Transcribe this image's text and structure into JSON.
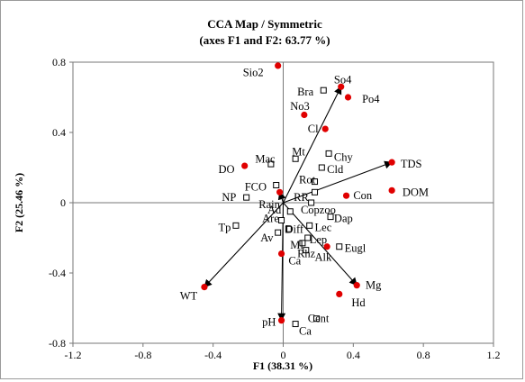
{
  "chart_data": {
    "type": "scatter",
    "title": "CCA Map / Symmetric",
    "subtitle": "(axes F1 and F2: 63.77 %)",
    "xlabel": "F1 (38.31 %)",
    "ylabel": "F2 (25.46 %)",
    "xlim": [
      -1.2,
      1.2
    ],
    "ylim": [
      -0.8,
      0.8
    ],
    "xticks": [
      "-1.2",
      "-0.8",
      "-0.4",
      "0",
      "0.4",
      "0.8",
      "1.2"
    ],
    "yticks": [
      "-0.8",
      "-0.4",
      "0",
      "0.4",
      "0.8"
    ],
    "grid": false,
    "colors": {
      "variables": "#e00000",
      "species": "#000000",
      "vectors": "#000000"
    },
    "variables": [
      {
        "name": "Sio2",
        "x": -0.03,
        "y": 0.78,
        "label_x": -0.23,
        "label_y": 0.74
      },
      {
        "name": "So4",
        "x": 0.33,
        "y": 0.66,
        "label_x": 0.29,
        "label_y": 0.7
      },
      {
        "name": "Po4",
        "x": 0.37,
        "y": 0.6,
        "label_x": 0.45,
        "label_y": 0.59
      },
      {
        "name": "No3",
        "x": 0.12,
        "y": 0.5,
        "label_x": 0.04,
        "label_y": 0.55
      },
      {
        "name": "Cl",
        "x": 0.24,
        "y": 0.42,
        "label_x": 0.14,
        "label_y": 0.42
      },
      {
        "name": "TDS",
        "x": 0.62,
        "y": 0.23,
        "label_x": 0.67,
        "label_y": 0.22
      },
      {
        "name": "DOM",
        "x": 0.62,
        "y": 0.07,
        "label_x": 0.68,
        "label_y": 0.06
      },
      {
        "name": "Con",
        "x": 0.36,
        "y": 0.04,
        "label_x": 0.4,
        "label_y": 0.04
      },
      {
        "name": "DO",
        "x": -0.22,
        "y": 0.21,
        "label_x": -0.37,
        "label_y": 0.19
      },
      {
        "name": "WT",
        "x": -0.45,
        "y": -0.48,
        "label_x": -0.59,
        "label_y": -0.53
      },
      {
        "name": "Mg",
        "x": 0.42,
        "y": -0.47,
        "label_x": 0.47,
        "label_y": -0.47
      },
      {
        "name": "Hd",
        "x": 0.32,
        "y": -0.52,
        "label_x": 0.39,
        "label_y": -0.57
      },
      {
        "name": "pH",
        "x": -0.01,
        "y": -0.67,
        "label_x": -0.12,
        "label_y": -0.68
      },
      {
        "name": "Ca",
        "x": -0.01,
        "y": -0.29,
        "label_x": 0.03,
        "label_y": -0.33
      },
      {
        "name": "Alk",
        "x": 0.25,
        "y": -0.25,
        "label_x": 0.18,
        "label_y": -0.31
      },
      {
        "name": "Rain",
        "x": -0.02,
        "y": 0.06,
        "label_x": -0.14,
        "label_y": -0.01
      }
    ],
    "species": [
      {
        "name": "Bra",
        "x": 0.23,
        "y": 0.64,
        "label_x": 0.08,
        "label_y": 0.63
      },
      {
        "name": "Chy",
        "x": 0.26,
        "y": 0.28,
        "label_x": 0.29,
        "label_y": 0.26
      },
      {
        "name": "Cld",
        "x": 0.22,
        "y": 0.2,
        "label_x": 0.25,
        "label_y": 0.19
      },
      {
        "name": "Mt",
        "x": 0.07,
        "y": 0.25,
        "label_x": 0.05,
        "label_y": 0.29
      },
      {
        "name": "Mac",
        "x": -0.07,
        "y": 0.22,
        "label_x": -0.16,
        "label_y": 0.25
      },
      {
        "name": "Rot",
        "x": 0.18,
        "y": 0.12,
        "label_x": 0.09,
        "label_y": 0.13
      },
      {
        "name": "FCO",
        "x": -0.04,
        "y": 0.1,
        "label_x": -0.22,
        "label_y": 0.09
      },
      {
        "name": "NP",
        "x": -0.21,
        "y": 0.03,
        "label_x": -0.35,
        "label_y": 0.03
      },
      {
        "name": "RR",
        "x": 0.18,
        "y": 0.06,
        "label_x": 0.06,
        "label_y": 0.03
      },
      {
        "name": "Copzoo",
        "x": 0.16,
        "y": 0.0,
        "label_x": 0.1,
        "label_y": -0.04
      },
      {
        "name": "Ad",
        "x": 0.04,
        "y": -0.05,
        "label_x": -0.09,
        "label_y": -0.04
      },
      {
        "name": "Are",
        "x": -0.01,
        "y": -0.1,
        "label_x": -0.12,
        "label_y": -0.09
      },
      {
        "name": "Dap",
        "x": 0.27,
        "y": -0.08,
        "label_x": 0.29,
        "label_y": -0.09
      },
      {
        "name": "Lec",
        "x": 0.15,
        "y": -0.13,
        "label_x": 0.18,
        "label_y": -0.14
      },
      {
        "name": "Diff",
        "x": 0.03,
        "y": -0.15,
        "label_x": 0.01,
        "label_y": -0.15
      },
      {
        "name": "Tp",
        "x": -0.27,
        "y": -0.13,
        "label_x": -0.37,
        "label_y": -0.14
      },
      {
        "name": "Av",
        "x": -0.03,
        "y": -0.17,
        "label_x": -0.13,
        "label_y": -0.2
      },
      {
        "name": "Lep",
        "x": 0.14,
        "y": -0.2,
        "label_x": 0.15,
        "label_y": -0.21
      },
      {
        "name": "Ml",
        "x": 0.11,
        "y": -0.23,
        "label_x": 0.04,
        "label_y": -0.24
      },
      {
        "name": "Rhz",
        "x": 0.13,
        "y": -0.27,
        "label_x": 0.08,
        "label_y": -0.29
      },
      {
        "name": "Eugl",
        "x": 0.32,
        "y": -0.25,
        "label_x": 0.35,
        "label_y": -0.26
      },
      {
        "name": "Cent",
        "x": 0.19,
        "y": -0.66,
        "label_x": 0.14,
        "label_y": -0.66
      },
      {
        "name": "Ca",
        "x": 0.07,
        "y": -0.69,
        "label_x": 0.09,
        "label_y": -0.73
      }
    ],
    "vectors": [
      "So4",
      "TDS",
      "Mg",
      "pH",
      "WT",
      "Rain"
    ]
  }
}
